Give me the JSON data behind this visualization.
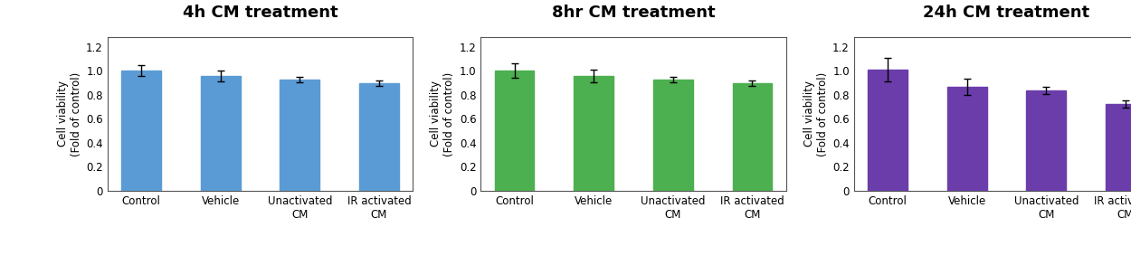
{
  "panels": [
    {
      "title": "4h CM treatment",
      "bar_color": "#5B9BD5",
      "error_color": "#000000",
      "categories": [
        "Control",
        "Vehicle",
        "Unactivated\nCM",
        "IR activated\nCM"
      ],
      "values": [
        1.0,
        0.955,
        0.925,
        0.895
      ],
      "errors": [
        0.045,
        0.045,
        0.025,
        0.02
      ]
    },
    {
      "title": "8hr CM treatment",
      "bar_color": "#4CAF50",
      "error_color": "#000000",
      "categories": [
        "Control",
        "Vehicle",
        "Unactivated\nCM",
        "IR activated\nCM"
      ],
      "values": [
        1.0,
        0.955,
        0.925,
        0.895
      ],
      "errors": [
        0.06,
        0.055,
        0.025,
        0.02
      ]
    },
    {
      "title": "24h CM treatment",
      "bar_color": "#6A3DAB",
      "error_color": "#000000",
      "categories": [
        "Control",
        "Vehicle",
        "Unactivated\nCM",
        "IR activated\nCM"
      ],
      "values": [
        1.01,
        0.865,
        0.835,
        0.725
      ],
      "errors": [
        0.1,
        0.065,
        0.03,
        0.03
      ]
    }
  ],
  "ylabel": "Cell viability\n(Fold of control)",
  "ylim": [
    0,
    1.28
  ],
  "yticks": [
    0,
    0.2,
    0.4,
    0.6,
    0.8,
    1.0,
    1.2
  ],
  "background_color": "#ffffff",
  "title_fontsize": 13,
  "ylabel_fontsize": 8.5,
  "tick_fontsize": 8.5,
  "bar_width": 0.5
}
